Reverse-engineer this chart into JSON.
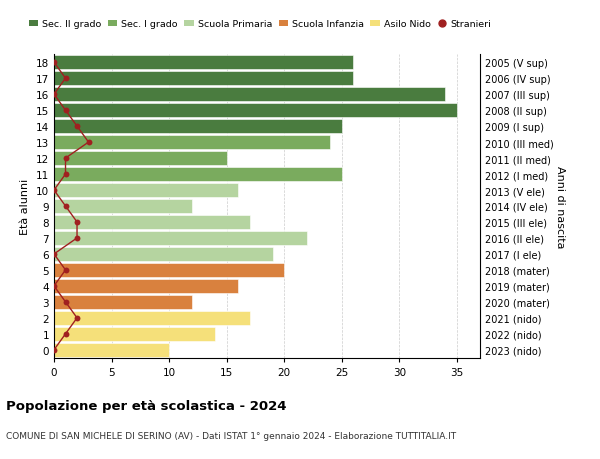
{
  "ages": [
    18,
    17,
    16,
    15,
    14,
    13,
    12,
    11,
    10,
    9,
    8,
    7,
    6,
    5,
    4,
    3,
    2,
    1,
    0
  ],
  "labels_right": [
    "2005 (V sup)",
    "2006 (IV sup)",
    "2007 (III sup)",
    "2008 (II sup)",
    "2009 (I sup)",
    "2010 (III med)",
    "2011 (II med)",
    "2012 (I med)",
    "2013 (V ele)",
    "2014 (IV ele)",
    "2015 (III ele)",
    "2016 (II ele)",
    "2017 (I ele)",
    "2018 (mater)",
    "2019 (mater)",
    "2020 (mater)",
    "2021 (nido)",
    "2022 (nido)",
    "2023 (nido)"
  ],
  "bar_values": [
    26,
    26,
    34,
    35,
    25,
    24,
    15,
    25,
    16,
    12,
    17,
    22,
    19,
    20,
    16,
    12,
    17,
    14,
    10
  ],
  "bar_colors": [
    "#4a7c3f",
    "#4a7c3f",
    "#4a7c3f",
    "#4a7c3f",
    "#4a7c3f",
    "#7aab5e",
    "#7aab5e",
    "#7aab5e",
    "#b5d4a0",
    "#b5d4a0",
    "#b5d4a0",
    "#b5d4a0",
    "#b5d4a0",
    "#d9813e",
    "#d9813e",
    "#d9813e",
    "#f5e07a",
    "#f5e07a",
    "#f5e07a"
  ],
  "stranieri_x": [
    0,
    1,
    0,
    1,
    2,
    3,
    1,
    1,
    0,
    1,
    2,
    2,
    0,
    1,
    0,
    1,
    2,
    1,
    0
  ],
  "stranieri_color": "#a02020",
  "legend_labels": [
    "Sec. II grado",
    "Sec. I grado",
    "Scuola Primaria",
    "Scuola Infanzia",
    "Asilo Nido",
    "Stranieri"
  ],
  "legend_colors": [
    "#4a7c3f",
    "#7aab5e",
    "#b5d4a0",
    "#d9813e",
    "#f5e07a",
    "#a02020"
  ],
  "title_bold": "Popolazione per età scolastica - 2024",
  "subtitle": "COMUNE DI SAN MICHELE DI SERINO (AV) - Dati ISTAT 1° gennaio 2024 - Elaborazione TUTTITALIA.IT",
  "ylabel_left": "Età alunni",
  "ylabel_right": "Anni di nascita",
  "xlim": [
    0,
    37
  ],
  "xticks": [
    0,
    5,
    10,
    15,
    20,
    25,
    30,
    35
  ],
  "figsize": [
    6.0,
    4.6
  ],
  "dpi": 100
}
